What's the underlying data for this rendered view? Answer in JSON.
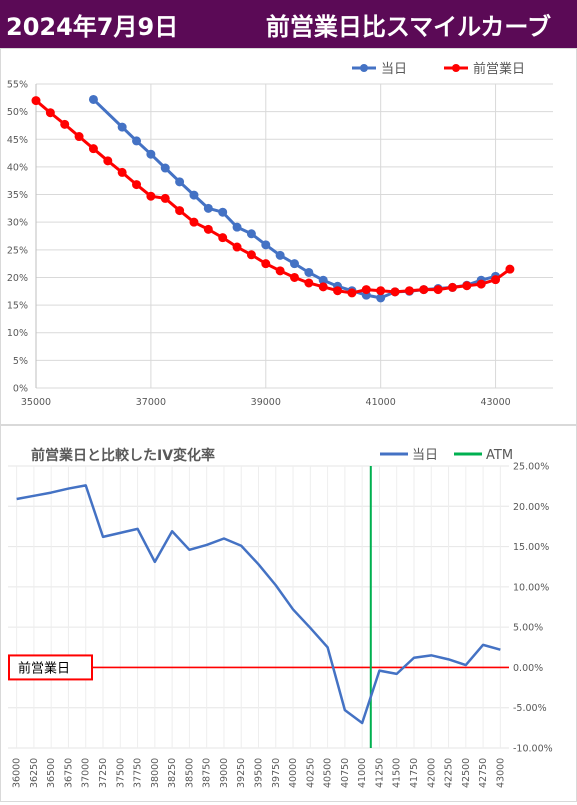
{
  "header": {
    "date": "2024年7月9日",
    "title": "前営業日比スマイルカーブ"
  },
  "chart_data": [
    {
      "type": "line",
      "title": "",
      "xlabel": "",
      "ylabel": "",
      "xlim": [
        35000,
        44000
      ],
      "ylim": [
        0,
        0.55
      ],
      "x_ticks": [
        "35000",
        "37000",
        "39000",
        "41000",
        "43000"
      ],
      "y_ticks": [
        "0%",
        "5%",
        "10%",
        "15%",
        "20%",
        "25%",
        "30%",
        "35%",
        "40%",
        "45%",
        "50%",
        "55%"
      ],
      "legend_position": "top-right",
      "series": [
        {
          "name": "当日",
          "color": "#4472c4",
          "x": [
            36000,
            36500,
            36750,
            37000,
            37250,
            37500,
            37750,
            38000,
            38250,
            38500,
            38750,
            39000,
            39250,
            39500,
            39750,
            40000,
            40250,
            40500,
            40750,
            41000,
            41250,
            41500,
            41750,
            42000,
            42250,
            42500,
            42750,
            43000
          ],
          "y": [
            0.522,
            0.472,
            0.447,
            0.423,
            0.398,
            0.373,
            0.349,
            0.325,
            0.318,
            0.291,
            0.279,
            0.259,
            0.24,
            0.225,
            0.209,
            0.195,
            0.184,
            0.176,
            0.168,
            0.163,
            0.174,
            0.175,
            0.178,
            0.18,
            0.182,
            0.186,
            0.195,
            0.202
          ]
        },
        {
          "name": "前営業日",
          "color": "#ff0000",
          "x": [
            35000,
            35250,
            35500,
            35750,
            36000,
            36250,
            36500,
            36750,
            37000,
            37250,
            37500,
            37750,
            38000,
            38250,
            38500,
            38750,
            39000,
            39250,
            39500,
            39750,
            40000,
            40250,
            40500,
            40750,
            41000,
            41250,
            41500,
            41750,
            42000,
            42250,
            42500,
            42750,
            43000,
            43250
          ],
          "y": [
            0.52,
            0.498,
            0.477,
            0.455,
            0.433,
            0.411,
            0.39,
            0.368,
            0.347,
            0.343,
            0.321,
            0.3,
            0.287,
            0.272,
            0.255,
            0.241,
            0.225,
            0.212,
            0.2,
            0.19,
            0.183,
            0.176,
            0.172,
            0.178,
            0.176,
            0.174,
            0.176,
            0.178,
            0.178,
            0.182,
            0.185,
            0.188,
            0.196,
            0.215
          ]
        }
      ]
    },
    {
      "type": "line",
      "title": "前営業日と比較したIV変化率",
      "xlabel": "",
      "ylabel": "",
      "ylim": [
        -0.1,
        0.25
      ],
      "y_ticks": [
        "25.00%",
        "20.00%",
        "15.00%",
        "10.00%",
        "5.00%",
        "0.00%",
        "-5.00%",
        "-10.00%"
      ],
      "categories": [
        "36000",
        "36250",
        "36500",
        "36750",
        "37000",
        "37250",
        "37500",
        "37750",
        "38000",
        "38250",
        "38500",
        "38750",
        "39000",
        "39250",
        "39500",
        "39750",
        "40000",
        "40250",
        "40500",
        "40750",
        "41000",
        "41250",
        "41500",
        "41750",
        "42000",
        "42250",
        "42500",
        "42750",
        "43000"
      ],
      "legend_position": "top-right",
      "series": [
        {
          "name": "当日",
          "color": "#4472c4",
          "values": [
            0.209,
            0.213,
            0.217,
            0.222,
            0.226,
            0.162,
            0.167,
            0.172,
            0.131,
            0.169,
            0.146,
            0.152,
            0.16,
            0.151,
            0.128,
            0.102,
            0.072,
            0.049,
            0.025,
            -0.053,
            -0.069,
            -0.004,
            -0.008,
            0.012,
            0.015,
            0.01,
            0.003,
            0.028,
            0.022
          ]
        }
      ],
      "atm": {
        "name": "ATM",
        "color": "#00b050",
        "category": "41250"
      },
      "baseline": {
        "label": "前営業日",
        "color": "#ff0000",
        "value": 0
      }
    }
  ]
}
